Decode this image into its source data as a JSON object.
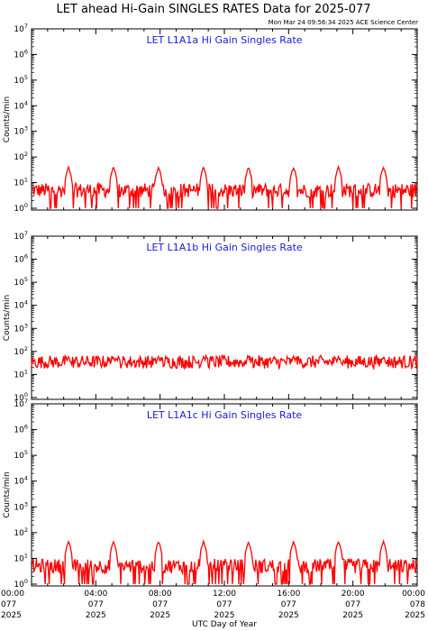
{
  "chart_data": {
    "type": "line",
    "title": "LET ahead Hi-Gain SINGLES RATES Data for 2025-077",
    "timestamp": "Mon Mar 24 09:56:34 2025 ACE Science Center",
    "xlabel": "UTC Day of Year",
    "x_ticks": [
      {
        "hour": 0,
        "time": "00:00",
        "doy": "077",
        "year": "2025"
      },
      {
        "hour": 4,
        "time": "04:00",
        "doy": "077",
        "year": "2025"
      },
      {
        "hour": 8,
        "time": "08:00",
        "doy": "077",
        "year": "2025"
      },
      {
        "hour": 12,
        "time": "12:00",
        "doy": "077",
        "year": "2025"
      },
      {
        "hour": 16,
        "time": "16:00",
        "doy": "077",
        "year": "2025"
      },
      {
        "hour": 20,
        "time": "20:00",
        "doy": "077",
        "year": "2025"
      },
      {
        "hour": 24,
        "time": "00:00",
        "doy": "078",
        "year": "2025"
      }
    ],
    "xlim_hours": [
      0,
      24
    ],
    "y_scale": "log",
    "ylim": [
      1,
      10000000
    ],
    "y_exponents": [
      0,
      1,
      2,
      3,
      4,
      5,
      6,
      7
    ],
    "line_color": "#ff0000",
    "panel_title_color": "#1a1ad6",
    "panels": [
      {
        "title": "LET L1A1a Hi Gain Singles Rate",
        "ylabel": "Counts/min",
        "baseline": 5,
        "spike_peak": 40,
        "spike_hours": [
          2.3,
          5.1,
          7.9,
          10.7,
          13.5,
          16.3,
          19.1,
          21.9
        ]
      },
      {
        "title": "LET L1A1b Hi Gain Singles Rate",
        "ylabel": "Counts/min",
        "baseline": 35,
        "spike_peak": 60,
        "spike_hours": [
          2.3,
          5.1,
          7.9,
          10.7,
          13.5,
          16.3,
          19.1,
          21.9
        ]
      },
      {
        "title": "LET L1A1c Hi Gain Singles Rate",
        "ylabel": "Counts/min",
        "baseline": 5,
        "spike_peak": 45,
        "spike_hours": [
          2.3,
          5.1,
          7.9,
          10.7,
          13.5,
          16.3,
          19.1,
          21.9
        ]
      }
    ]
  }
}
